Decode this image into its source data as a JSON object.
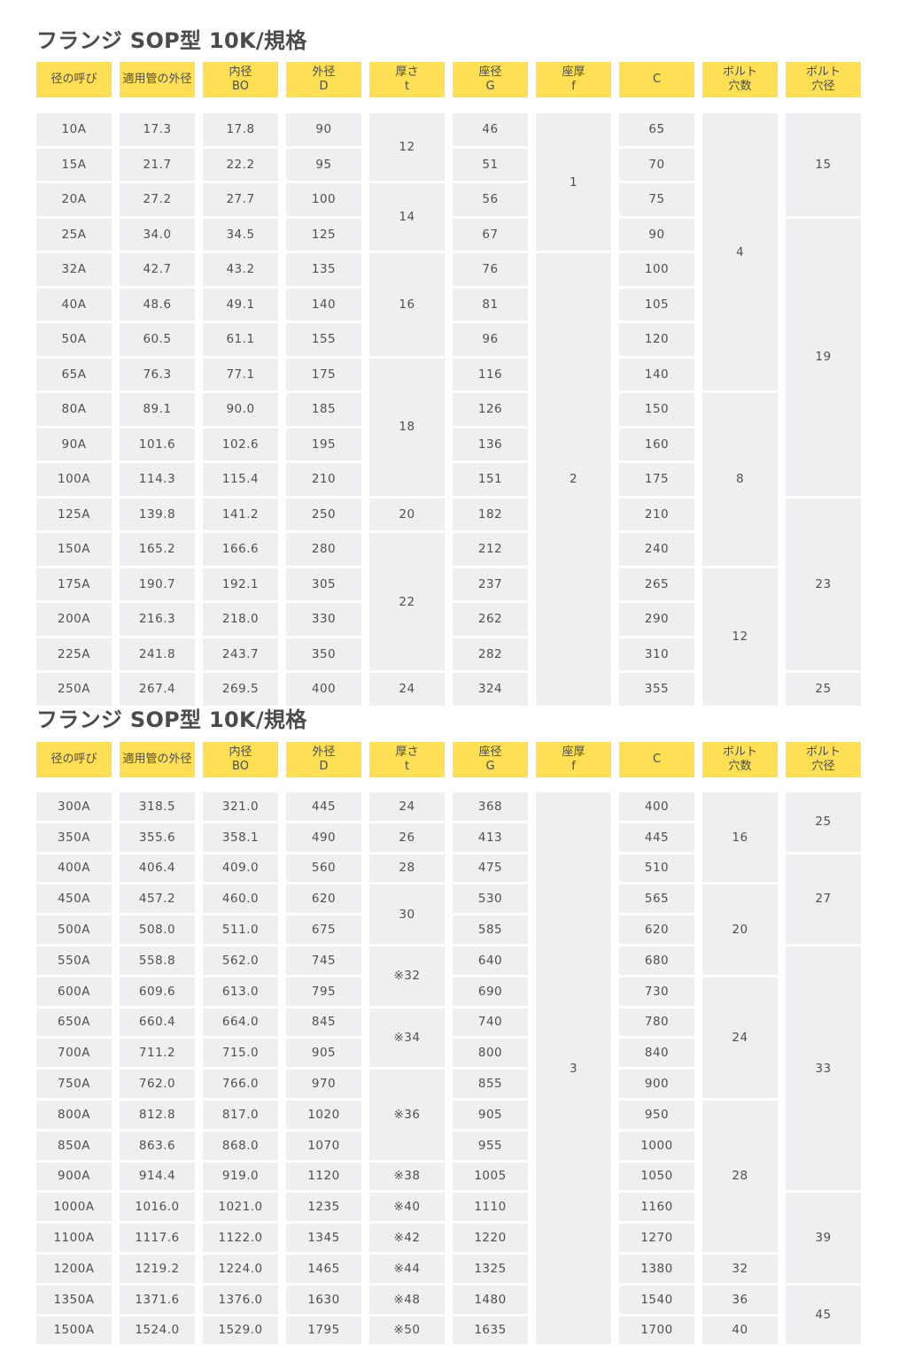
{
  "sections": [
    {
      "title": "フランジ SOP型 10K/規格",
      "headers": [
        "径の呼び",
        "適用管の外径",
        "内径\nBO",
        "外径\nD",
        "厚さ\nt",
        "座径\nG",
        "座厚\nf",
        "C",
        "ボルト\n穴数",
        "ボルト\n穴径"
      ],
      "columns": [
        [
          {
            "v": "10A",
            "span": 1
          },
          {
            "v": "15A",
            "span": 1
          },
          {
            "v": "20A",
            "span": 1
          },
          {
            "v": "25A",
            "span": 1
          },
          {
            "v": "32A",
            "span": 1
          },
          {
            "v": "40A",
            "span": 1
          },
          {
            "v": "50A",
            "span": 1
          },
          {
            "v": "65A",
            "span": 1
          },
          {
            "v": "80A",
            "span": 1
          },
          {
            "v": "90A",
            "span": 1
          },
          {
            "v": "100A",
            "span": 1
          },
          {
            "v": "125A",
            "span": 1
          },
          {
            "v": "150A",
            "span": 1
          },
          {
            "v": "175A",
            "span": 1
          },
          {
            "v": "200A",
            "span": 1
          },
          {
            "v": "225A",
            "span": 1
          },
          {
            "v": "250A",
            "span": 1
          }
        ],
        [
          {
            "v": "17.3",
            "span": 1
          },
          {
            "v": "21.7",
            "span": 1
          },
          {
            "v": "27.2",
            "span": 1
          },
          {
            "v": "34.0",
            "span": 1
          },
          {
            "v": "42.7",
            "span": 1
          },
          {
            "v": "48.6",
            "span": 1
          },
          {
            "v": "60.5",
            "span": 1
          },
          {
            "v": "76.3",
            "span": 1
          },
          {
            "v": "89.1",
            "span": 1
          },
          {
            "v": "101.6",
            "span": 1
          },
          {
            "v": "114.3",
            "span": 1
          },
          {
            "v": "139.8",
            "span": 1
          },
          {
            "v": "165.2",
            "span": 1
          },
          {
            "v": "190.7",
            "span": 1
          },
          {
            "v": "216.3",
            "span": 1
          },
          {
            "v": "241.8",
            "span": 1
          },
          {
            "v": "267.4",
            "span": 1
          }
        ],
        [
          {
            "v": "17.8",
            "span": 1
          },
          {
            "v": "22.2",
            "span": 1
          },
          {
            "v": "27.7",
            "span": 1
          },
          {
            "v": "34.5",
            "span": 1
          },
          {
            "v": "43.2",
            "span": 1
          },
          {
            "v": "49.1",
            "span": 1
          },
          {
            "v": "61.1",
            "span": 1
          },
          {
            "v": "77.1",
            "span": 1
          },
          {
            "v": "90.0",
            "span": 1
          },
          {
            "v": "102.6",
            "span": 1
          },
          {
            "v": "115.4",
            "span": 1
          },
          {
            "v": "141.2",
            "span": 1
          },
          {
            "v": "166.6",
            "span": 1
          },
          {
            "v": "192.1",
            "span": 1
          },
          {
            "v": "218.0",
            "span": 1
          },
          {
            "v": "243.7",
            "span": 1
          },
          {
            "v": "269.5",
            "span": 1
          }
        ],
        [
          {
            "v": "90",
            "span": 1
          },
          {
            "v": "95",
            "span": 1
          },
          {
            "v": "100",
            "span": 1
          },
          {
            "v": "125",
            "span": 1
          },
          {
            "v": "135",
            "span": 1
          },
          {
            "v": "140",
            "span": 1
          },
          {
            "v": "155",
            "span": 1
          },
          {
            "v": "175",
            "span": 1
          },
          {
            "v": "185",
            "span": 1
          },
          {
            "v": "195",
            "span": 1
          },
          {
            "v": "210",
            "span": 1
          },
          {
            "v": "250",
            "span": 1
          },
          {
            "v": "280",
            "span": 1
          },
          {
            "v": "305",
            "span": 1
          },
          {
            "v": "330",
            "span": 1
          },
          {
            "v": "350",
            "span": 1
          },
          {
            "v": "400",
            "span": 1
          }
        ],
        [
          {
            "v": "12",
            "span": 2
          },
          {
            "v": "14",
            "span": 2
          },
          {
            "v": "16",
            "span": 3
          },
          {
            "v": "18",
            "span": 4
          },
          {
            "v": "20",
            "span": 1
          },
          {
            "v": "22",
            "span": 4
          },
          {
            "v": "24",
            "span": 1
          }
        ],
        [
          {
            "v": "46",
            "span": 1
          },
          {
            "v": "51",
            "span": 1
          },
          {
            "v": "56",
            "span": 1
          },
          {
            "v": "67",
            "span": 1
          },
          {
            "v": "76",
            "span": 1
          },
          {
            "v": "81",
            "span": 1
          },
          {
            "v": "96",
            "span": 1
          },
          {
            "v": "116",
            "span": 1
          },
          {
            "v": "126",
            "span": 1
          },
          {
            "v": "136",
            "span": 1
          },
          {
            "v": "151",
            "span": 1
          },
          {
            "v": "182",
            "span": 1
          },
          {
            "v": "212",
            "span": 1
          },
          {
            "v": "237",
            "span": 1
          },
          {
            "v": "262",
            "span": 1
          },
          {
            "v": "282",
            "span": 1
          },
          {
            "v": "324",
            "span": 1
          }
        ],
        [
          {
            "v": "1",
            "span": 4
          },
          {
            "v": "2",
            "span": 13
          }
        ],
        [
          {
            "v": "65",
            "span": 1
          },
          {
            "v": "70",
            "span": 1
          },
          {
            "v": "75",
            "span": 1
          },
          {
            "v": "90",
            "span": 1
          },
          {
            "v": "100",
            "span": 1
          },
          {
            "v": "105",
            "span": 1
          },
          {
            "v": "120",
            "span": 1
          },
          {
            "v": "140",
            "span": 1
          },
          {
            "v": "150",
            "span": 1
          },
          {
            "v": "160",
            "span": 1
          },
          {
            "v": "175",
            "span": 1
          },
          {
            "v": "210",
            "span": 1
          },
          {
            "v": "240",
            "span": 1
          },
          {
            "v": "265",
            "span": 1
          },
          {
            "v": "290",
            "span": 1
          },
          {
            "v": "310",
            "span": 1
          },
          {
            "v": "355",
            "span": 1
          }
        ],
        [
          {
            "v": "4",
            "span": 8
          },
          {
            "v": "8",
            "span": 5
          },
          {
            "v": "12",
            "span": 4
          }
        ],
        [
          {
            "v": "15",
            "span": 3
          },
          {
            "v": "19",
            "span": 8
          },
          {
            "v": "23",
            "span": 5
          },
          {
            "v": "25",
            "span": 1
          }
        ]
      ]
    },
    {
      "title": "フランジ SOP型 10K/規格",
      "headers": [
        "径の呼び",
        "適用管の外径",
        "内径\nBO",
        "外径\nD",
        "厚さ\nt",
        "座径\nG",
        "座厚\nf",
        "C",
        "ボルト\n穴数",
        "ボルト\n穴径"
      ],
      "columns": [
        [
          {
            "v": "300A",
            "span": 1
          },
          {
            "v": "350A",
            "span": 1
          },
          {
            "v": "400A",
            "span": 1
          },
          {
            "v": "450A",
            "span": 1
          },
          {
            "v": "500A",
            "span": 1
          },
          {
            "v": "550A",
            "span": 1
          },
          {
            "v": "600A",
            "span": 1
          },
          {
            "v": "650A",
            "span": 1
          },
          {
            "v": "700A",
            "span": 1
          },
          {
            "v": "750A",
            "span": 1
          },
          {
            "v": "800A",
            "span": 1
          },
          {
            "v": "850A",
            "span": 1
          },
          {
            "v": "900A",
            "span": 1
          },
          {
            "v": "1000A",
            "span": 1
          },
          {
            "v": "1100A",
            "span": 1
          },
          {
            "v": "1200A",
            "span": 1
          },
          {
            "v": "1350A",
            "span": 1
          },
          {
            "v": "1500A",
            "span": 1
          }
        ],
        [
          {
            "v": "318.5",
            "span": 1
          },
          {
            "v": "355.6",
            "span": 1
          },
          {
            "v": "406.4",
            "span": 1
          },
          {
            "v": "457.2",
            "span": 1
          },
          {
            "v": "508.0",
            "span": 1
          },
          {
            "v": "558.8",
            "span": 1
          },
          {
            "v": "609.6",
            "span": 1
          },
          {
            "v": "660.4",
            "span": 1
          },
          {
            "v": "711.2",
            "span": 1
          },
          {
            "v": "762.0",
            "span": 1
          },
          {
            "v": "812.8",
            "span": 1
          },
          {
            "v": "863.6",
            "span": 1
          },
          {
            "v": "914.4",
            "span": 1
          },
          {
            "v": "1016.0",
            "span": 1
          },
          {
            "v": "1117.6",
            "span": 1
          },
          {
            "v": "1219.2",
            "span": 1
          },
          {
            "v": "1371.6",
            "span": 1
          },
          {
            "v": "1524.0",
            "span": 1
          }
        ],
        [
          {
            "v": "321.0",
            "span": 1
          },
          {
            "v": "358.1",
            "span": 1
          },
          {
            "v": "409.0",
            "span": 1
          },
          {
            "v": "460.0",
            "span": 1
          },
          {
            "v": "511.0",
            "span": 1
          },
          {
            "v": "562.0",
            "span": 1
          },
          {
            "v": "613.0",
            "span": 1
          },
          {
            "v": "664.0",
            "span": 1
          },
          {
            "v": "715.0",
            "span": 1
          },
          {
            "v": "766.0",
            "span": 1
          },
          {
            "v": "817.0",
            "span": 1
          },
          {
            "v": "868.0",
            "span": 1
          },
          {
            "v": "919.0",
            "span": 1
          },
          {
            "v": "1021.0",
            "span": 1
          },
          {
            "v": "1122.0",
            "span": 1
          },
          {
            "v": "1224.0",
            "span": 1
          },
          {
            "v": "1376.0",
            "span": 1
          },
          {
            "v": "1529.0",
            "span": 1
          }
        ],
        [
          {
            "v": "445",
            "span": 1
          },
          {
            "v": "490",
            "span": 1
          },
          {
            "v": "560",
            "span": 1
          },
          {
            "v": "620",
            "span": 1
          },
          {
            "v": "675",
            "span": 1
          },
          {
            "v": "745",
            "span": 1
          },
          {
            "v": "795",
            "span": 1
          },
          {
            "v": "845",
            "span": 1
          },
          {
            "v": "905",
            "span": 1
          },
          {
            "v": "970",
            "span": 1
          },
          {
            "v": "1020",
            "span": 1
          },
          {
            "v": "1070",
            "span": 1
          },
          {
            "v": "1120",
            "span": 1
          },
          {
            "v": "1235",
            "span": 1
          },
          {
            "v": "1345",
            "span": 1
          },
          {
            "v": "1465",
            "span": 1
          },
          {
            "v": "1630",
            "span": 1
          },
          {
            "v": "1795",
            "span": 1
          }
        ],
        [
          {
            "v": "24",
            "span": 1
          },
          {
            "v": "26",
            "span": 1
          },
          {
            "v": "28",
            "span": 1
          },
          {
            "v": "30",
            "span": 2
          },
          {
            "v": "※32",
            "span": 2
          },
          {
            "v": "※34",
            "span": 2
          },
          {
            "v": "※36",
            "span": 3
          },
          {
            "v": "※38",
            "span": 1
          },
          {
            "v": "※40",
            "span": 1
          },
          {
            "v": "※42",
            "span": 1
          },
          {
            "v": "※44",
            "span": 1
          },
          {
            "v": "※48",
            "span": 1
          },
          {
            "v": "※50",
            "span": 1
          }
        ],
        [
          {
            "v": "368",
            "span": 1
          },
          {
            "v": "413",
            "span": 1
          },
          {
            "v": "475",
            "span": 1
          },
          {
            "v": "530",
            "span": 1
          },
          {
            "v": "585",
            "span": 1
          },
          {
            "v": "640",
            "span": 1
          },
          {
            "v": "690",
            "span": 1
          },
          {
            "v": "740",
            "span": 1
          },
          {
            "v": "800",
            "span": 1
          },
          {
            "v": "855",
            "span": 1
          },
          {
            "v": "905",
            "span": 1
          },
          {
            "v": "955",
            "span": 1
          },
          {
            "v": "1005",
            "span": 1
          },
          {
            "v": "1110",
            "span": 1
          },
          {
            "v": "1220",
            "span": 1
          },
          {
            "v": "1325",
            "span": 1
          },
          {
            "v": "1480",
            "span": 1
          },
          {
            "v": "1635",
            "span": 1
          }
        ],
        [
          {
            "v": "3",
            "span": 18
          }
        ],
        [
          {
            "v": "400",
            "span": 1
          },
          {
            "v": "445",
            "span": 1
          },
          {
            "v": "510",
            "span": 1
          },
          {
            "v": "565",
            "span": 1
          },
          {
            "v": "620",
            "span": 1
          },
          {
            "v": "680",
            "span": 1
          },
          {
            "v": "730",
            "span": 1
          },
          {
            "v": "780",
            "span": 1
          },
          {
            "v": "840",
            "span": 1
          },
          {
            "v": "900",
            "span": 1
          },
          {
            "v": "950",
            "span": 1
          },
          {
            "v": "1000",
            "span": 1
          },
          {
            "v": "1050",
            "span": 1
          },
          {
            "v": "1160",
            "span": 1
          },
          {
            "v": "1270",
            "span": 1
          },
          {
            "v": "1380",
            "span": 1
          },
          {
            "v": "1540",
            "span": 1
          },
          {
            "v": "1700",
            "span": 1
          }
        ],
        [
          {
            "v": "16",
            "span": 3
          },
          {
            "v": "20",
            "span": 3
          },
          {
            "v": "24",
            "span": 4
          },
          {
            "v": "28",
            "span": 5
          },
          {
            "v": "32",
            "span": 1
          },
          {
            "v": "36",
            "span": 1
          },
          {
            "v": "40",
            "span": 1
          }
        ],
        [
          {
            "v": "25",
            "span": 2
          },
          {
            "v": "27",
            "span": 3
          },
          {
            "v": "33",
            "span": 8
          },
          {
            "v": "39",
            "span": 3
          },
          {
            "v": "45",
            "span": 2
          }
        ]
      ]
    }
  ]
}
